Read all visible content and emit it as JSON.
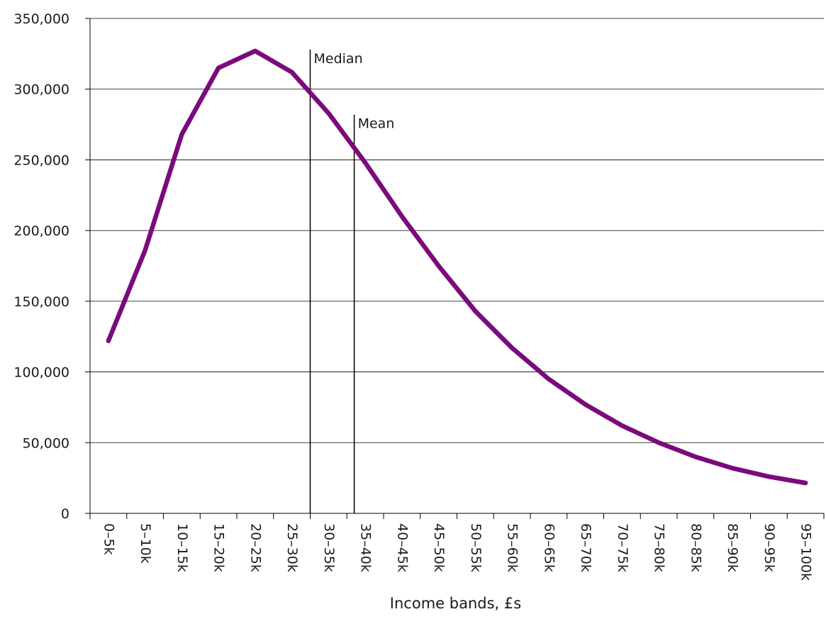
{
  "chart_data": {
    "type": "line",
    "title": "",
    "xlabel": "Income bands, £s",
    "ylabel": "",
    "categories": [
      "0–5k",
      "5–10k",
      "10–15k",
      "15–20k",
      "20–25k",
      "25–30k",
      "30–35k",
      "35–40k",
      "40–45k",
      "45–50k",
      "50–55k",
      "55–60k",
      "60–65k",
      "65–70k",
      "70–75k",
      "75–80k",
      "80–85k",
      "85–90k",
      "90–95k",
      "95–100k"
    ],
    "series": [
      {
        "values": [
          122000,
          186000,
          268000,
          315000,
          327000,
          312000,
          283000,
          248000,
          210000,
          175000,
          143000,
          117000,
          95000,
          77000,
          62000,
          50000,
          40000,
          32000,
          26000,
          21500
        ],
        "color": "#7b0a7b"
      }
    ],
    "ylim": [
      0,
      350000
    ],
    "yticks": [
      0,
      50000,
      100000,
      150000,
      200000,
      250000,
      300000,
      350000
    ],
    "ytick_labels": [
      "0",
      "50,000",
      "100,000",
      "150,000",
      "200,000",
      "250,000",
      "300,000",
      "350,000"
    ],
    "grid": true,
    "annotations": [
      {
        "label": "Median",
        "x": 6.0,
        "top": 328000
      },
      {
        "label": "Mean",
        "x": 7.2,
        "top": 282000
      }
    ]
  }
}
